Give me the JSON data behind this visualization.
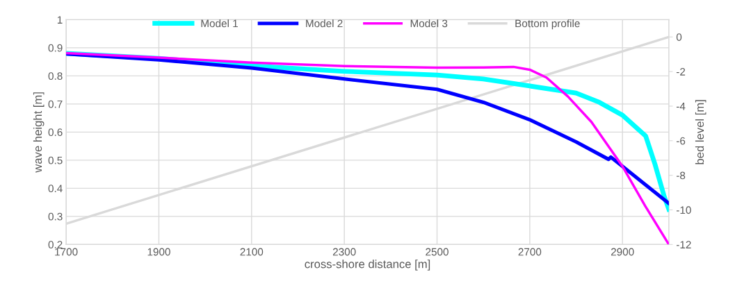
{
  "chart_data": {
    "type": "line",
    "xlabel": "cross-shore distance [m]",
    "ylabel": "wave height [m]",
    "y2label": "bed level [m]",
    "xlim": [
      1700,
      3000
    ],
    "xticks": [
      1700,
      1900,
      2100,
      2300,
      2500,
      2700,
      2900
    ],
    "ylim": [
      0.2,
      1
    ],
    "yticks": [
      0.2,
      0.3,
      0.4,
      0.5,
      0.6,
      0.7,
      0.8,
      0.9,
      1
    ],
    "y2lim": [
      -12,
      1
    ],
    "y2ticks": [
      -12,
      -10,
      -8,
      -6,
      -4,
      -2,
      0
    ],
    "grid": true,
    "legend": "top",
    "marker": "none",
    "line_style": "solid",
    "series": [
      {
        "name": "Model 1",
        "color": "#00ffff",
        "x": [
          1700,
          1900,
          2100,
          2300,
          2500,
          2600,
          2700,
          2800,
          2850,
          2900,
          2950,
          2970,
          2990,
          3000
        ],
        "values": [
          0.88,
          0.862,
          0.836,
          0.816,
          0.803,
          0.789,
          0.764,
          0.739,
          0.706,
          0.66,
          0.586,
          0.486,
          0.371,
          0.325
        ]
      },
      {
        "name": "Model 2",
        "color": "#0000ff",
        "x": [
          1700,
          1900,
          2100,
          2300,
          2500,
          2600,
          2700,
          2800,
          2870,
          2875,
          2900,
          2950,
          3000
        ],
        "values": [
          0.878,
          0.857,
          0.828,
          0.789,
          0.752,
          0.706,
          0.644,
          0.565,
          0.503,
          0.511,
          0.478,
          0.412,
          0.346
        ]
      },
      {
        "name": "Model 3",
        "color": "#ff00ff",
        "x": [
          1700,
          1900,
          2100,
          2300,
          2500,
          2600,
          2665,
          2700,
          2736,
          2782,
          2833,
          2900,
          2949,
          3000
        ],
        "values": [
          0.881,
          0.865,
          0.847,
          0.835,
          0.829,
          0.83,
          0.832,
          0.822,
          0.794,
          0.727,
          0.636,
          0.478,
          0.337,
          0.2
        ]
      },
      {
        "name": "Bottom profile",
        "color": "#d9d9d9",
        "axis": "y2",
        "x": [
          1700,
          3000
        ],
        "values": [
          -10.8,
          0
        ]
      }
    ]
  }
}
